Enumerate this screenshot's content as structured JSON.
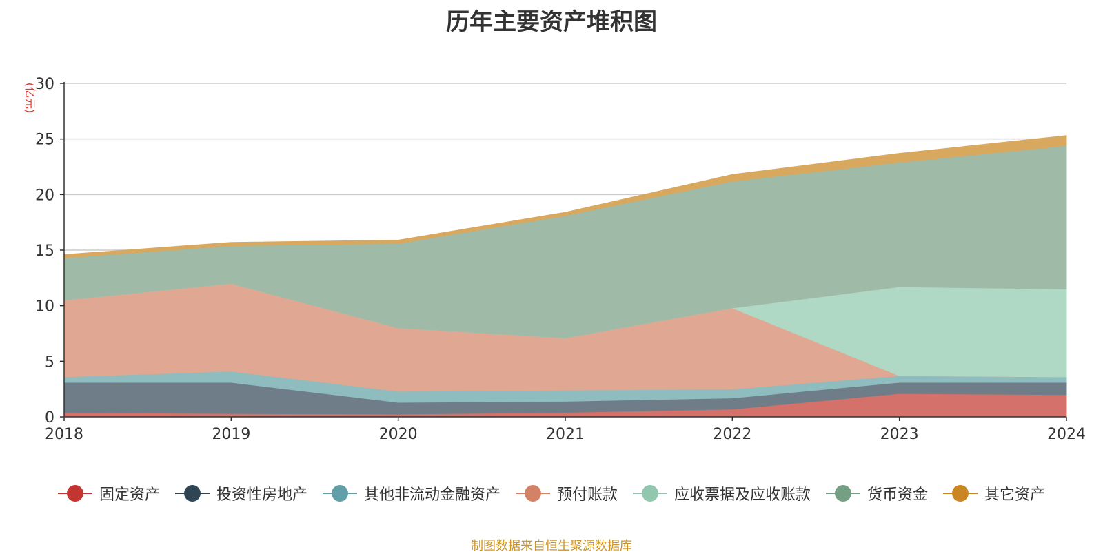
{
  "chart_data": {
    "type": "area",
    "stacked": true,
    "title": "历年主要资产堆积图",
    "unit_label": "(亿元)",
    "x": [
      "2018",
      "2019",
      "2020",
      "2021",
      "2022",
      "2023",
      "2024"
    ],
    "ylim": [
      0,
      30
    ],
    "yticks": [
      0,
      5,
      10,
      15,
      20,
      25,
      30
    ],
    "grid": true,
    "legend_position": "bottom",
    "series": [
      {
        "name": "固定资产",
        "color": "#c23531",
        "fill": "#d4716b",
        "values": [
          0.4,
          0.3,
          0.25,
          0.4,
          0.7,
          2.1,
          2.0
        ]
      },
      {
        "name": "投资性房地产",
        "color": "#2f4554",
        "fill": "#6e7d87",
        "values": [
          2.7,
          2.8,
          1.05,
          1.0,
          1.0,
          1.0,
          1.1
        ]
      },
      {
        "name": "其他非流动金融资产",
        "color": "#61a0a8",
        "fill": "#8ebcbf",
        "values": [
          0.5,
          1.0,
          1.0,
          1.0,
          0.8,
          0.6,
          0.5
        ]
      },
      {
        "name": "预付账款",
        "color": "#d48265",
        "fill": "#e0a792",
        "values": [
          6.9,
          7.9,
          5.7,
          4.7,
          7.3,
          0.0,
          0.0
        ]
      },
      {
        "name": "应收票据及应收账款",
        "color": "#91c7ae",
        "fill": "#b0d9c5",
        "values": [
          0.0,
          0.0,
          0.0,
          0.0,
          0.0,
          8.0,
          7.9
        ]
      },
      {
        "name": "货币资金",
        "color": "#749f83",
        "fill": "#9fbba8",
        "values": [
          3.8,
          3.4,
          7.6,
          11.0,
          11.4,
          11.2,
          12.9
        ]
      },
      {
        "name": "其它资产",
        "color": "#ca8622",
        "fill": "#d9a85f",
        "values": [
          0.3,
          0.3,
          0.3,
          0.3,
          0.6,
          0.8,
          0.9
        ]
      }
    ]
  },
  "source_note": "制图数据来自恒生聚源数据库"
}
